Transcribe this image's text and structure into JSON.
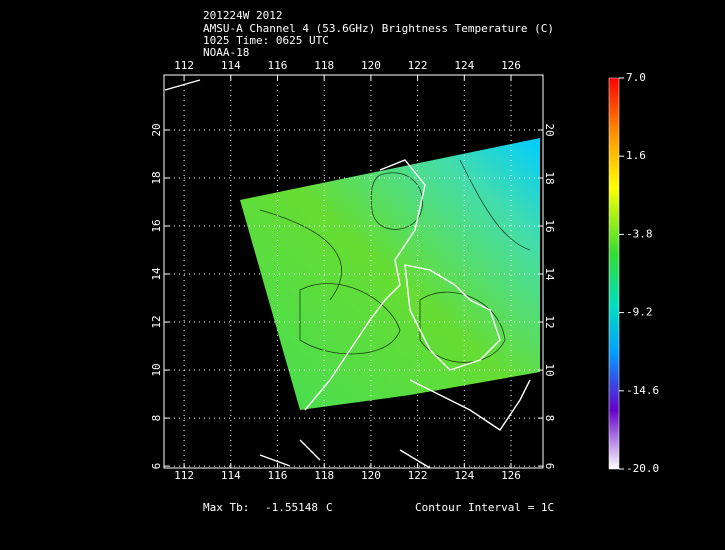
{
  "header": {
    "lines": [
      "201224W 2012",
      "AMSU-A Channel 4 (53.6GHz) Brightness Temperature (C)",
      "1025 Time: 0625 UTC",
      "NOAA-18"
    ]
  },
  "map": {
    "lonlim": [
      111.14,
      127.37
    ],
    "latlim": [
      5.92,
      22.29
    ],
    "lon_ticks": [
      112,
      114,
      116,
      118,
      120,
      122,
      124,
      126
    ],
    "lat_ticks": [
      6,
      8,
      10,
      12,
      14,
      16,
      18,
      20
    ],
    "grid": true
  },
  "colorbar": {
    "lim": [
      -20,
      7
    ],
    "ticks": [
      {
        "value": 7,
        "label": "7.0"
      },
      1.6,
      -3.8,
      -9.2,
      -14.6,
      {
        "value": -20,
        "label": "-20.0"
      }
    ]
  },
  "footer": {
    "max_label": "Max Tb:",
    "max_value": "-1.55148",
    "max_unit": "C",
    "contour": "Contour Interval = 1C"
  }
}
